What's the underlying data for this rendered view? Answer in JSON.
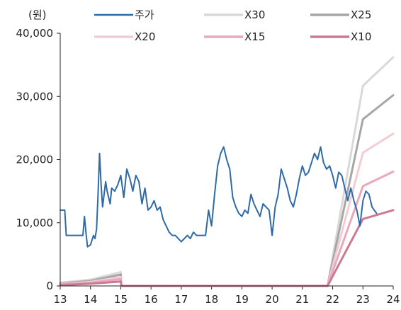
{
  "chart_data": {
    "type": "line",
    "ylabel": "(원)",
    "xlabel": "",
    "xlim": [
      13,
      24
    ],
    "ylim": [
      0,
      40000
    ],
    "y_ticks": [
      0,
      10000,
      20000,
      30000,
      40000
    ],
    "y_tick_labels": [
      "0",
      "10,000",
      "20,000",
      "30,000",
      "40,000"
    ],
    "x_ticks": [
      13,
      14,
      15,
      16,
      17,
      18,
      19,
      20,
      21,
      22,
      23,
      24
    ],
    "x_tick_labels": [
      "13",
      "14",
      "15",
      "16",
      "17",
      "18",
      "19",
      "20",
      "21",
      "22",
      "23",
      "24"
    ],
    "grid": false,
    "legend_position": "top",
    "series": [
      {
        "name": "주가",
        "color": "#2e6aa8",
        "x": [
          13.0,
          13.15,
          13.2,
          13.4,
          13.6,
          13.75,
          13.8,
          13.85,
          13.9,
          14.0,
          14.1,
          14.15,
          14.2,
          14.25,
          14.3,
          14.35,
          14.4,
          14.5,
          14.55,
          14.6,
          14.65,
          14.7,
          14.8,
          14.9,
          15.0,
          15.1,
          15.2,
          15.3,
          15.4,
          15.5,
          15.6,
          15.7,
          15.8,
          15.9,
          16.0,
          16.1,
          16.2,
          16.3,
          16.4,
          16.5,
          16.6,
          16.7,
          16.8,
          16.9,
          17.0,
          17.1,
          17.2,
          17.3,
          17.4,
          17.5,
          17.6,
          17.7,
          17.8,
          17.9,
          18.0,
          18.1,
          18.2,
          18.3,
          18.4,
          18.5,
          18.6,
          18.7,
          18.8,
          18.9,
          19.0,
          19.1,
          19.2,
          19.3,
          19.4,
          19.5,
          19.6,
          19.7,
          19.8,
          19.9,
          20.0,
          20.1,
          20.2,
          20.3,
          20.4,
          20.5,
          20.6,
          20.7,
          20.8,
          20.9,
          21.0,
          21.1,
          21.2,
          21.3,
          21.4,
          21.5,
          21.6,
          21.7,
          21.8,
          21.9,
          22.0,
          22.1,
          22.2,
          22.3,
          22.4,
          22.5,
          22.6,
          22.7,
          22.8,
          22.9,
          23.0,
          23.1,
          23.2,
          23.3,
          23.45
        ],
        "y": [
          12000,
          12000,
          8000,
          8000,
          8000,
          8000,
          11000,
          8500,
          6200,
          6500,
          8000,
          7500,
          9000,
          14500,
          21000,
          16000,
          12500,
          16500,
          15000,
          14000,
          13000,
          15500,
          15000,
          16000,
          17500,
          14000,
          18500,
          17000,
          15000,
          17500,
          16500,
          13000,
          15500,
          12000,
          12500,
          13500,
          12000,
          12500,
          10500,
          9500,
          8500,
          8000,
          8000,
          7500,
          7000,
          7500,
          8000,
          7500,
          8500,
          8000,
          8000,
          8000,
          8000,
          12000,
          9500,
          14500,
          19000,
          21000,
          22000,
          20000,
          18500,
          14000,
          12500,
          11500,
          11000,
          12000,
          11500,
          14500,
          13000,
          12000,
          11000,
          13000,
          12500,
          12000,
          8000,
          12500,
          14500,
          18500,
          17000,
          15500,
          13500,
          12500,
          14500,
          17000,
          19000,
          17500,
          18000,
          19500,
          21000,
          20000,
          22000,
          19500,
          18500,
          19000,
          17500,
          15500,
          18000,
          17500,
          15500,
          13500,
          15500,
          13500,
          12000,
          9500,
          13500,
          15000,
          14500,
          12500,
          11500
        ]
      },
      {
        "name": "X30",
        "color": "#d9d9d9",
        "x": [
          13.0,
          14.0,
          15.0,
          15.02,
          21.83,
          23.0,
          24.0
        ],
        "y": [
          500,
          1000,
          2200,
          0,
          0,
          31700,
          36200
        ]
      },
      {
        "name": "X25",
        "color": "#a6a6a6",
        "x": [
          13.0,
          14.0,
          15.0,
          15.02,
          21.83,
          23.0,
          24.0
        ],
        "y": [
          400,
          800,
          1800,
          0,
          0,
          26400,
          30200
        ]
      },
      {
        "name": "X20",
        "color": "#f4ccd6",
        "x": [
          13.0,
          14.0,
          15.0,
          15.02,
          21.83,
          23.0,
          24.0
        ],
        "y": [
          300,
          650,
          1400,
          0,
          0,
          21100,
          24100
        ]
      },
      {
        "name": "X15",
        "color": "#e8a9bb",
        "x": [
          13.0,
          14.0,
          15.0,
          15.02,
          21.83,
          23.0,
          24.0
        ],
        "y": [
          250,
          500,
          1100,
          0,
          0,
          15800,
          18100
        ]
      },
      {
        "name": "X10",
        "color": "#cc7a93",
        "x": [
          13.0,
          14.0,
          15.0,
          15.02,
          21.83,
          23.0,
          24.0
        ],
        "y": [
          150,
          350,
          700,
          0,
          0,
          10600,
          12000
        ]
      }
    ]
  }
}
